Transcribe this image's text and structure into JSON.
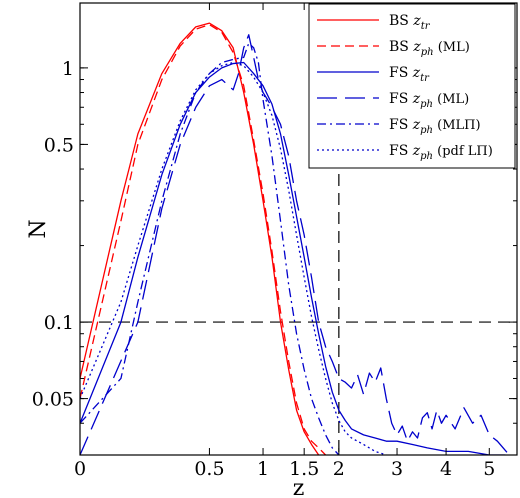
{
  "chart_data": {
    "type": "line",
    "title": "",
    "xlabel": "z",
    "ylabel": "N",
    "xlim": [
      0,
      5.7
    ],
    "ylim": [
      0.03,
      1.8
    ],
    "x_scale": "sqrt",
    "y_scale": "log",
    "grid": false,
    "legend_position": "top-right",
    "x_ticks": [
      {
        "value": 0,
        "label": "0"
      },
      {
        "value": 0.5,
        "label": "0.5"
      },
      {
        "value": 1,
        "label": "1"
      },
      {
        "value": 1.5,
        "label": "1.5"
      },
      {
        "value": 2,
        "label": "2"
      },
      {
        "value": 3,
        "label": "3"
      },
      {
        "value": 4,
        "label": "4"
      },
      {
        "value": 5,
        "label": "5"
      }
    ],
    "y_ticks": [
      {
        "value": 0.05,
        "label": "0.05"
      },
      {
        "value": 0.1,
        "label": "0.1"
      },
      {
        "value": 0.5,
        "label": "0.5"
      },
      {
        "value": 1,
        "label": "1"
      }
    ],
    "reference_lines": [
      {
        "axis": "x",
        "value": 2,
        "style": "dashed",
        "color": "#000000"
      },
      {
        "axis": "y",
        "value": 0.1,
        "style": "dashed",
        "color": "#000000"
      }
    ],
    "series": [
      {
        "name": "BS z_tr",
        "legend_main": "BS ",
        "legend_sub": "tr",
        "legend_suffix": "",
        "color": "#ff0000",
        "dash": "",
        "stroke_width": 1.3,
        "x": [
          0.0,
          0.05,
          0.1,
          0.2,
          0.3,
          0.4,
          0.5,
          0.6,
          0.7,
          0.8,
          0.9,
          1.0,
          1.1,
          1.2,
          1.3,
          1.4,
          1.5,
          1.6,
          1.7
        ],
        "y": [
          0.06,
          0.3,
          0.55,
          0.95,
          1.25,
          1.45,
          1.5,
          1.4,
          1.2,
          0.8,
          0.5,
          0.3,
          0.18,
          0.1,
          0.065,
          0.045,
          0.037,
          0.033,
          0.03
        ]
      },
      {
        "name": "BS z_ph (ML)",
        "legend_main": "BS ",
        "legend_sub": "ph",
        "legend_suffix": " (ML)",
        "color": "#ff0000",
        "dash": "9,5",
        "stroke_width": 1.3,
        "x": [
          0.0,
          0.05,
          0.1,
          0.2,
          0.3,
          0.4,
          0.5,
          0.6,
          0.7,
          0.8,
          0.9,
          1.0,
          1.1,
          1.2,
          1.3,
          1.4,
          1.5,
          1.6,
          1.7,
          1.8
        ],
        "y": [
          0.05,
          0.25,
          0.5,
          0.9,
          1.22,
          1.42,
          1.48,
          1.38,
          1.15,
          0.85,
          0.52,
          0.32,
          0.19,
          0.11,
          0.07,
          0.048,
          0.038,
          0.034,
          0.032,
          0.03
        ]
      },
      {
        "name": "FS z_tr",
        "legend_main": "FS ",
        "legend_sub": "tr",
        "legend_suffix": "",
        "color": "#0000cc",
        "dash": "",
        "stroke_width": 1.3,
        "x": [
          0.0,
          0.05,
          0.1,
          0.2,
          0.3,
          0.4,
          0.5,
          0.6,
          0.7,
          0.8,
          0.9,
          1.0,
          1.1,
          1.2,
          1.3,
          1.4,
          1.5,
          1.6,
          1.7,
          1.8,
          1.9,
          2.0,
          2.1,
          2.2,
          2.4,
          2.6,
          2.8,
          3.0,
          3.3,
          3.6,
          4.0,
          4.5,
          5.0,
          5.4
        ],
        "y": [
          0.04,
          0.1,
          0.18,
          0.38,
          0.6,
          0.8,
          0.92,
          1.0,
          1.04,
          1.05,
          0.95,
          0.85,
          0.72,
          0.55,
          0.38,
          0.26,
          0.18,
          0.125,
          0.09,
          0.067,
          0.053,
          0.045,
          0.041,
          0.038,
          0.036,
          0.035,
          0.034,
          0.034,
          0.033,
          0.032,
          0.031,
          0.031,
          0.03,
          0.03
        ]
      },
      {
        "name": "FS z_ph (ML)",
        "legend_main": "FS ",
        "legend_sub": "ph",
        "legend_suffix": " (ML)",
        "color": "#0000cc",
        "dash": "20,8",
        "stroke_width": 1.3,
        "x": [
          0.0,
          0.1,
          0.2,
          0.3,
          0.4,
          0.5,
          0.6,
          0.7,
          0.75,
          0.8,
          0.85,
          0.9,
          0.95,
          1.0,
          1.05,
          1.1,
          1.2,
          1.3,
          1.4,
          1.5,
          1.6,
          1.7,
          1.8,
          1.9,
          2.0,
          2.1,
          2.2,
          2.3,
          2.4,
          2.5,
          2.6,
          2.7,
          2.8,
          2.9,
          3.0,
          3.1,
          3.2,
          3.3,
          3.4,
          3.5,
          3.6,
          3.7,
          3.8,
          3.9,
          4.0,
          4.2,
          4.4,
          4.6,
          4.8,
          5.0,
          5.2,
          5.5
        ],
        "y": [
          0.03,
          0.1,
          0.28,
          0.5,
          0.7,
          0.85,
          0.9,
          0.82,
          0.95,
          1.2,
          1.35,
          1.1,
          0.9,
          0.8,
          0.75,
          0.7,
          0.6,
          0.45,
          0.3,
          0.22,
          0.15,
          0.1,
          0.08,
          0.07,
          0.06,
          0.058,
          0.055,
          0.062,
          0.052,
          0.063,
          0.058,
          0.066,
          0.05,
          0.04,
          0.036,
          0.039,
          0.034,
          0.037,
          0.035,
          0.042,
          0.044,
          0.038,
          0.045,
          0.04,
          0.043,
          0.038,
          0.046,
          0.04,
          0.043,
          0.036,
          0.034,
          0.03
        ]
      },
      {
        "name": "FS z_ph (MLΠ)",
        "legend_main": "FS ",
        "legend_sub": "ph",
        "legend_suffix": " (MLΠ)",
        "color": "#0000cc",
        "dash": "9,4,2,4",
        "stroke_width": 1.3,
        "x": [
          0.0,
          0.05,
          0.1,
          0.2,
          0.3,
          0.4,
          0.5,
          0.6,
          0.7,
          0.8,
          0.85,
          0.9,
          0.95,
          1.0,
          1.1,
          1.2,
          1.3,
          1.4,
          1.5,
          1.6,
          1.7,
          1.8,
          1.9,
          2.0
        ],
        "y": [
          0.04,
          0.06,
          0.12,
          0.3,
          0.55,
          0.8,
          0.95,
          1.05,
          1.08,
          1.1,
          1.25,
          1.2,
          1.05,
          0.75,
          0.45,
          0.25,
          0.14,
          0.09,
          0.065,
          0.05,
          0.042,
          0.036,
          0.032,
          0.03
        ]
      },
      {
        "name": "FS z_ph (pdf LΠ)",
        "legend_main": "FS ",
        "legend_sub": "ph",
        "legend_suffix": " (pdf LΠ)",
        "color": "#0000cc",
        "dash": "2,3",
        "stroke_width": 1.3,
        "x": [
          0.0,
          0.05,
          0.1,
          0.2,
          0.3,
          0.4,
          0.5,
          0.6,
          0.7,
          0.8,
          0.9,
          1.0,
          1.1,
          1.2,
          1.3,
          1.4,
          1.5,
          1.6,
          1.7,
          1.8,
          1.9,
          2.0,
          2.1,
          2.2,
          2.4,
          2.6,
          2.8
        ],
        "y": [
          0.05,
          0.12,
          0.2,
          0.4,
          0.62,
          0.82,
          0.95,
          1.02,
          1.05,
          1.02,
          0.92,
          0.8,
          0.65,
          0.48,
          0.33,
          0.22,
          0.15,
          0.105,
          0.078,
          0.06,
          0.048,
          0.041,
          0.037,
          0.035,
          0.033,
          0.031,
          0.03
        ]
      }
    ]
  }
}
